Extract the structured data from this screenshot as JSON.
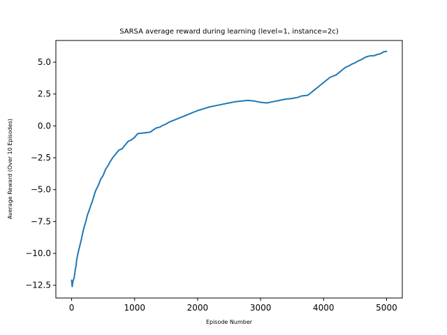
{
  "chart_data": {
    "type": "line",
    "title": "SARSA average reward during learning (level=1, instance=2c)",
    "xlabel": "Episode Number",
    "ylabel": "Average Reward (Over 10 Episodes)",
    "xlim": [
      -250,
      5250
    ],
    "ylim": [
      -13.5,
      6.7
    ],
    "xticks": [
      0,
      1000,
      2000,
      3000,
      4000,
      5000
    ],
    "xtick_labels": [
      "0",
      "1000",
      "2000",
      "3000",
      "4000",
      "5000"
    ],
    "yticks": [
      -12.5,
      -10.0,
      -7.5,
      -5.0,
      -2.5,
      0.0,
      2.5,
      5.0
    ],
    "ytick_labels": [
      "−12.5",
      "−10.0",
      "−7.5",
      "−5.0",
      "−2.5",
      "0.0",
      "2.5",
      "5.0"
    ],
    "grid": false,
    "color": "#1f77b4",
    "series": [
      {
        "x": [
          0,
          10,
          20,
          40,
          60,
          70,
          80,
          100,
          120,
          150,
          180,
          200,
          220,
          250,
          280,
          300,
          330,
          360,
          380,
          400,
          430,
          460,
          500,
          540,
          580,
          600,
          650,
          700,
          750,
          800,
          850,
          900,
          950,
          1000,
          1050,
          1100,
          1150,
          1200,
          1250,
          1300,
          1350,
          1400,
          1450,
          1500,
          1550,
          1600,
          1650,
          1700,
          1800,
          1900,
          2000,
          2100,
          2200,
          2300,
          2400,
          2500,
          2600,
          2700,
          2800,
          2900,
          3000,
          3100,
          3200,
          3300,
          3400,
          3500,
          3600,
          3650,
          3750,
          3800,
          3850,
          3900,
          3950,
          4000,
          4050,
          4100,
          4150,
          4200,
          4250,
          4300,
          4350,
          4400,
          4450,
          4500,
          4550,
          4600,
          4650,
          4700,
          4750,
          4800,
          4850,
          4900,
          4950,
          5000
        ],
        "y": [
          -12.1,
          -12.6,
          -12.2,
          -11.9,
          -11.2,
          -11.0,
          -10.5,
          -10.0,
          -9.6,
          -9.0,
          -8.3,
          -7.9,
          -7.6,
          -7.0,
          -6.6,
          -6.3,
          -5.9,
          -5.4,
          -5.1,
          -4.9,
          -4.6,
          -4.2,
          -3.9,
          -3.4,
          -3.1,
          -2.9,
          -2.5,
          -2.2,
          -1.9,
          -1.8,
          -1.5,
          -1.2,
          -1.1,
          -0.9,
          -0.6,
          -0.58,
          -0.55,
          -0.52,
          -0.48,
          -0.3,
          -0.15,
          -0.1,
          0.05,
          0.15,
          0.3,
          0.4,
          0.5,
          0.6,
          0.8,
          1.0,
          1.2,
          1.35,
          1.5,
          1.6,
          1.7,
          1.8,
          1.9,
          1.95,
          2.0,
          1.95,
          1.85,
          1.8,
          1.9,
          2.0,
          2.1,
          2.15,
          2.25,
          2.35,
          2.4,
          2.6,
          2.8,
          3.0,
          3.2,
          3.4,
          3.6,
          3.8,
          3.9,
          4.0,
          4.2,
          4.4,
          4.6,
          4.7,
          4.85,
          4.95,
          5.1,
          5.2,
          5.35,
          5.45,
          5.5,
          5.5,
          5.6,
          5.65,
          5.8,
          5.85
        ]
      }
    ]
  }
}
